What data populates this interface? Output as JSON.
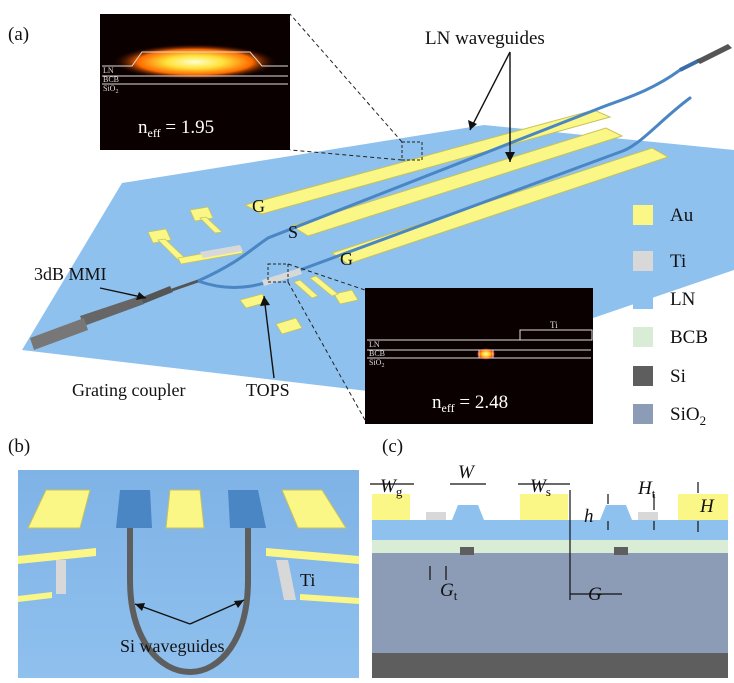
{
  "panels": {
    "a": "(a)",
    "b": "(b)",
    "c": "(c)"
  },
  "panel_a": {
    "lbl_lnwg": "LN waveguides",
    "lbl_g1": "G",
    "lbl_s": "S",
    "lbl_g2": "G",
    "lbl_mmi": "3dB MMI",
    "lbl_grating": "Grating coupler",
    "lbl_tops": "TOPS",
    "inset1": {
      "ln": "LN",
      "bcb": "BCB",
      "sio2": "SiO",
      "sio2_sub": "2",
      "neff": "n",
      "neff_sub": "eff",
      "neff_val": " = 1.95"
    },
    "inset2": {
      "ti": "Ti",
      "ln": "LN",
      "bcb": "BCB",
      "sio2": "SiO",
      "sio2_sub": "2",
      "neff": "n",
      "neff_sub": "eff",
      "neff_val": " = 2.48"
    }
  },
  "legend": [
    {
      "label": "Au",
      "sub": "",
      "color": "#fbf787"
    },
    {
      "label": "Ti",
      "sub": "",
      "color": "#d8d8d8"
    },
    {
      "label": "LN",
      "sub": "",
      "color": "#8ec1ee"
    },
    {
      "label": "BCB",
      "sub": "",
      "color": "#d8ecd6"
    },
    {
      "label": "Si",
      "sub": "",
      "color": "#5e5e5e"
    },
    {
      "label": "SiO",
      "sub": "2",
      "color": "#8d9cb6"
    }
  ],
  "panel_b": {
    "lbl_ti": "Ti",
    "lbl_si": "Si waveguides"
  },
  "panel_c": {
    "wg": "W",
    "wg_sub": "g",
    "w": "W",
    "ws": "W",
    "ws_sub": "s",
    "h": "h",
    "ht": "H",
    "ht_sub": "t",
    "hH": "H",
    "gt": "G",
    "gt_sub": "t",
    "g": "G"
  },
  "colors": {
    "au": "#fbf787",
    "ti": "#d8d8d8",
    "ln": "#8ec1ee",
    "bcb": "#d8ecd6",
    "si": "#5e5e5e",
    "sio2": "#8d9cb6",
    "chip": "#8ec1ee"
  }
}
